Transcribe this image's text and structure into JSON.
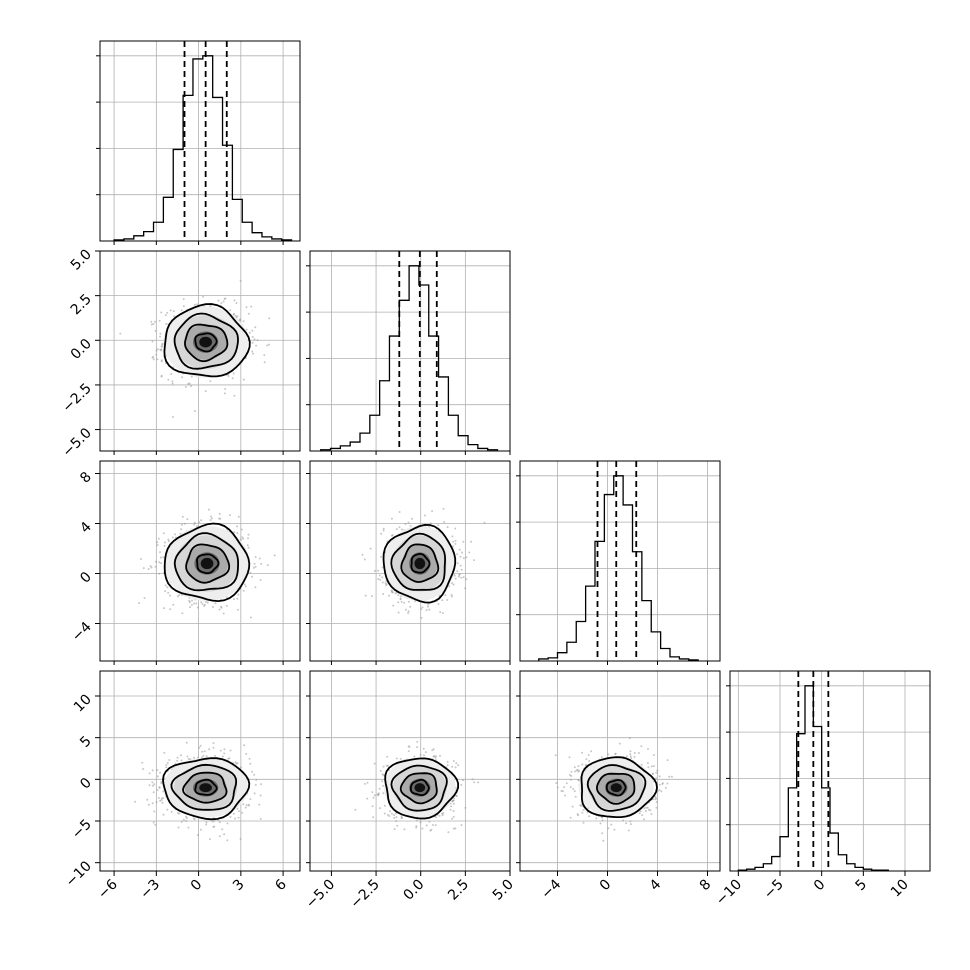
{
  "chart_data": {
    "type": "corner",
    "n_params": 4,
    "grid": true,
    "params": [
      {
        "index": 0,
        "range": [
          -7,
          7.2
        ],
        "ticks": [
          {
            "v": -6,
            "label": "−6"
          },
          {
            "v": -3,
            "label": "−3"
          },
          {
            "v": 0,
            "label": "0"
          },
          {
            "v": 3,
            "label": "3"
          },
          {
            "v": 6,
            "label": "6"
          }
        ],
        "quantiles": [
          -1.0,
          0.5,
          2.0
        ],
        "hist_edges": [
          -6,
          -5.3,
          -4.6,
          -3.9,
          -3.2,
          -2.5,
          -1.8,
          -1.1,
          -0.4,
          0.3,
          1.0,
          1.7,
          2.4,
          3.1,
          3.8,
          4.5,
          5.2,
          5.9,
          6.6
        ],
        "hist_counts": [
          1,
          2,
          5,
          9,
          18,
          42,
          88,
          140,
          175,
          178,
          138,
          92,
          40,
          18,
          8,
          4,
          2,
          1
        ]
      },
      {
        "index": 1,
        "range": [
          -6.2,
          5.0
        ],
        "ticks": [
          {
            "v": -5,
            "label": "−5.0"
          },
          {
            "v": -2.5,
            "label": "−2.5"
          },
          {
            "v": 0,
            "label": "0.0"
          },
          {
            "v": 2.5,
            "label": "2.5"
          },
          {
            "v": 5,
            "label": "5.0"
          }
        ],
        "quantiles": [
          -1.2,
          -0.05,
          0.9
        ],
        "hist_edges": [
          -5.6,
          -5.05,
          -4.5,
          -3.95,
          -3.4,
          -2.85,
          -2.3,
          -1.75,
          -1.2,
          -0.65,
          -0.1,
          0.45,
          1.0,
          1.55,
          2.1,
          2.65,
          3.2,
          3.75,
          4.3
        ],
        "hist_counts": [
          1,
          2,
          4,
          7,
          14,
          28,
          55,
          90,
          118,
          145,
          130,
          90,
          58,
          28,
          12,
          5,
          2,
          1
        ]
      },
      {
        "index": 2,
        "range": [
          -7.0,
          9.0
        ],
        "ticks": [
          {
            "v": -4,
            "label": "−4"
          },
          {
            "v": 0,
            "label": "0"
          },
          {
            "v": 4,
            "label": "4"
          },
          {
            "v": 8,
            "label": "8"
          }
        ],
        "quantiles": [
          -0.8,
          0.7,
          2.3
        ],
        "hist_edges": [
          -5.5,
          -4.75,
          -4.0,
          -3.25,
          -2.5,
          -1.75,
          -1.0,
          -0.25,
          0.5,
          1.25,
          2.0,
          2.75,
          3.5,
          4.25,
          5.0,
          5.75,
          6.5,
          7.25
        ],
        "hist_counts": [
          2,
          3,
          8,
          18,
          38,
          72,
          115,
          160,
          178,
          150,
          105,
          58,
          28,
          12,
          4,
          2,
          1
        ]
      },
      {
        "index": 3,
        "range": [
          -11.0,
          13.0
        ],
        "ticks": [
          {
            "v": -10,
            "label": "−10"
          },
          {
            "v": -5,
            "label": "−5"
          },
          {
            "v": 0,
            "label": "0"
          },
          {
            "v": 5,
            "label": "5"
          },
          {
            "v": 10,
            "label": "10"
          }
        ],
        "quantiles": [
          -2.8,
          -1.0,
          0.8
        ],
        "hist_edges": [
          -10,
          -9,
          -8,
          -7,
          -6,
          -5,
          -4,
          -3,
          -2,
          -1,
          0,
          1,
          2,
          3,
          4,
          5,
          6,
          7,
          8
        ],
        "hist_counts": [
          1,
          2,
          4,
          8,
          16,
          38,
          92,
          152,
          205,
          160,
          92,
          42,
          18,
          8,
          4,
          2,
          1,
          1
        ]
      }
    ],
    "pairs": [
      {
        "x": 0,
        "y": 1,
        "center": [
          0.5,
          -0.1
        ],
        "sigma": [
          1.5,
          1.0
        ]
      },
      {
        "x": 0,
        "y": 2,
        "center": [
          0.6,
          0.8
        ],
        "sigma": [
          1.5,
          1.5
        ]
      },
      {
        "x": 1,
        "y": 2,
        "center": [
          -0.05,
          0.8
        ],
        "sigma": [
          1.0,
          1.5
        ]
      },
      {
        "x": 0,
        "y": 3,
        "center": [
          0.5,
          -1.0
        ],
        "sigma": [
          1.5,
          1.8
        ]
      },
      {
        "x": 1,
        "y": 3,
        "center": [
          -0.05,
          -1.0
        ],
        "sigma": [
          1.0,
          1.8
        ]
      },
      {
        "x": 2,
        "y": 3,
        "center": [
          0.7,
          -1.0
        ],
        "sigma": [
          1.5,
          1.8
        ]
      }
    ],
    "contour_levels_sigma": [
      0.5,
      1.0,
      1.5,
      2.0
    ]
  }
}
